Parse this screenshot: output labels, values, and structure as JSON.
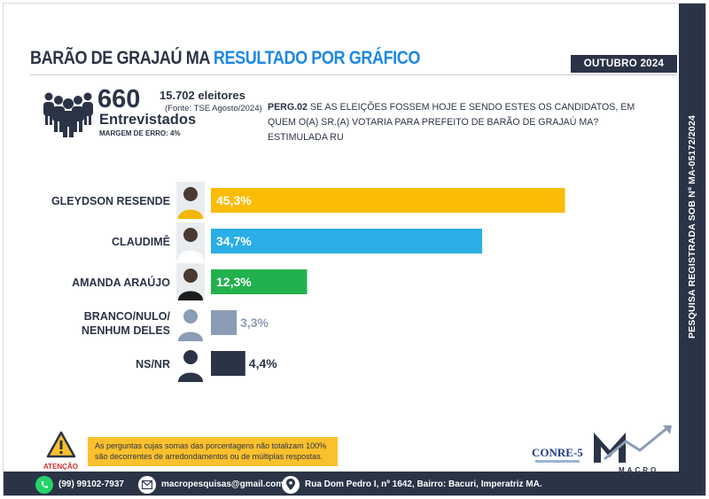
{
  "header": {
    "title_part1": "BARÃO DE GRAJAÚ MA",
    "title_part2": "RESULTADO POR GRÁFICO",
    "month_badge": "OUTUBRO 2024"
  },
  "sample": {
    "interviewed": "660",
    "interviewed_label": "Entrevistados",
    "voters": "15.702 eleitores",
    "source": "(Fonte: TSE Agosto/2024)",
    "margin": "MARGEM DE ERRO: 4%"
  },
  "question": {
    "code": "PERG.02",
    "text": " SE AS ELEIÇÕES FOSSEM HOJE E SENDO ESTES OS CANDIDATOS, EM QUEM O(A) SR.(A) VOTARIA PARA PREFEITO DE BARÃO DE GRAJAÚ MA? ESTIMULADA RU"
  },
  "side_registration": "PESQUISA REGISTRADA SOB Nº MA-05172/2024",
  "chart_data": {
    "type": "bar",
    "orientation": "horizontal",
    "categories": [
      "GLEYDSON RESENDE",
      "CLAUDIMÊ",
      "AMANDA ARAÚJO",
      "BRANCO/NULO/ NENHUM DELES",
      "NS/NR"
    ],
    "category_lines": [
      [
        "GLEYDSON RESENDE"
      ],
      [
        "CLAUDIMÊ"
      ],
      [
        "AMANDA ARAÚJO"
      ],
      [
        "BRANCO/NULO/",
        "NENHUM DELES"
      ],
      [
        "NS/NR"
      ]
    ],
    "values": [
      45.3,
      34.7,
      12.3,
      3.3,
      4.4
    ],
    "value_labels": [
      "45,3%",
      "34,7%",
      "12,3%",
      "3,3%",
      "4,4%"
    ],
    "colors": [
      "#fbbc05",
      "#29aee6",
      "#22b14c",
      "#8b9cb5",
      "#2b3447"
    ],
    "avatar_icons": [
      "candidate-photo-icon",
      "candidate-photo-icon",
      "candidate-photo-icon",
      "person-silhouette-icon",
      "person-silhouette-icon"
    ],
    "xlim": [
      0,
      50
    ],
    "grid": false,
    "legend": "none"
  },
  "notice": {
    "icon": "warning-icon",
    "label": "ATENÇÃO",
    "text": "As perguntas cujas somas das porcentagens não totalizam 100% são decorrentes de arredondamentos ou de múltiplas respostas."
  },
  "logos": {
    "conre": "CONRE-5",
    "macro": "MACRO"
  },
  "footer": {
    "phone": "(99) 99102-7937",
    "email": "macropesquisas@gmail.com",
    "address": "Rua Dom Pedro I, nº 1642, Bairro: Bacuri, Imperatriz MA."
  },
  "colors": {
    "navy": "#2b3447",
    "accent_blue": "#1e88e5",
    "warning_yellow": "#fbc02d",
    "whatsapp_green": "#25d366"
  }
}
